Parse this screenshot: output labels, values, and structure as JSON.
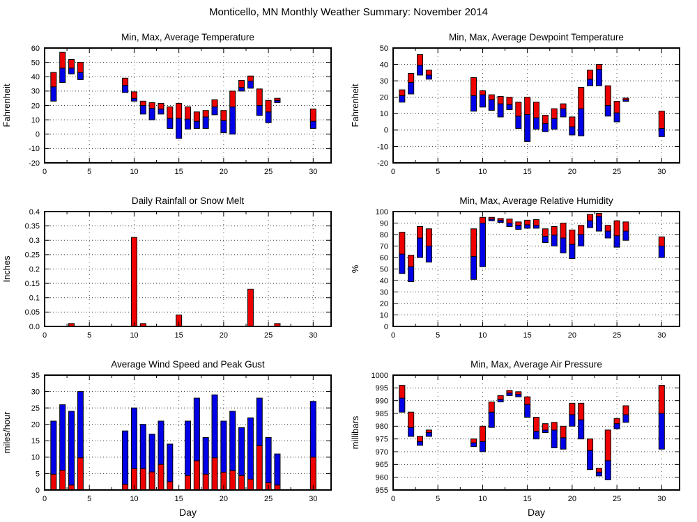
{
  "page_title": "Monticello, MN Monthly Weather Summary: November 2014",
  "colors": {
    "red": "#ee0000",
    "blue": "#0000e8",
    "frame": "#000000",
    "grid": "#333333",
    "vgrid": "#555555",
    "background": "#ffffff"
  },
  "chart_data": [
    {
      "id": "temperature",
      "type": "range-bar",
      "title": "Min, Max, Average Temperature",
      "ylabel": "Fahrenheit",
      "xlabel": "",
      "ylim": [
        -20,
        60
      ],
      "xlim": [
        0,
        32
      ],
      "grid": "dotted",
      "legend_position": "none",
      "ytick_vals": [
        -20,
        -10,
        0,
        10,
        20,
        30,
        40,
        50,
        60
      ],
      "ytick_labels": [
        "-20",
        "-10",
        "0",
        "10",
        "20",
        "30",
        "40",
        "50",
        "60"
      ],
      "xticks": [
        0,
        5,
        10,
        15,
        20,
        25,
        30
      ],
      "xtick_labels": [
        "0",
        "5",
        "10",
        "15",
        "20",
        "25",
        "30"
      ],
      "days": [
        1,
        2,
        3,
        4,
        9,
        10,
        11,
        12,
        13,
        14,
        15,
        16,
        17,
        18,
        19,
        20,
        21,
        22,
        23,
        24,
        25,
        26,
        30
      ],
      "series": [
        {
          "name": "min",
          "values": [
            23,
            36,
            42,
            38,
            29,
            23,
            14,
            10,
            14,
            4,
            -3,
            3.5,
            4,
            4,
            13.5,
            1,
            0,
            30,
            32,
            13,
            8,
            22,
            4
          ]
        },
        {
          "name": "avg",
          "values": [
            33,
            46,
            46,
            43,
            34,
            25,
            20,
            18,
            17.5,
            11,
            11,
            10.5,
            9,
            12,
            19,
            9.5,
            19,
            32.5,
            37,
            20,
            15.5,
            23.5,
            9
          ]
        },
        {
          "name": "max",
          "values": [
            43,
            57,
            52,
            50,
            39,
            29.5,
            23,
            22,
            21.5,
            19,
            21.5,
            19,
            15.5,
            16.5,
            24,
            16.5,
            30,
            37.5,
            40.5,
            31.5,
            23.5,
            25,
            17.5
          ]
        }
      ]
    },
    {
      "id": "dewpoint",
      "type": "range-bar",
      "title": "Min, Max, Average Dewpoint Temperature",
      "ylabel": "Fahrenheit",
      "xlabel": "",
      "ylim": [
        -20,
        50
      ],
      "xlim": [
        0,
        32
      ],
      "grid": "dotted",
      "legend_position": "none",
      "ytick_vals": [
        -20,
        -10,
        0,
        10,
        20,
        30,
        40,
        50
      ],
      "ytick_labels": [
        "-20",
        "-10",
        "0",
        "10",
        "20",
        "30",
        "40",
        "50"
      ],
      "xticks": [
        0,
        5,
        10,
        15,
        20,
        25,
        30
      ],
      "xtick_labels": [
        "0",
        "5",
        "10",
        "15",
        "20",
        "25",
        "30"
      ],
      "days": [
        1,
        2,
        3,
        4,
        9,
        10,
        11,
        12,
        13,
        14,
        15,
        16,
        17,
        18,
        19,
        20,
        21,
        22,
        23,
        24,
        25,
        26,
        30
      ],
      "series": [
        {
          "name": "min",
          "values": [
            17,
            22,
            33.5,
            31,
            11.5,
            14,
            12,
            8,
            12.5,
            1,
            -7,
            0.5,
            -1,
            0.5,
            8,
            -3,
            -3.5,
            27,
            27,
            8.5,
            5,
            17.5,
            -4
          ]
        },
        {
          "name": "avg",
          "values": [
            21,
            29,
            39.5,
            33.5,
            21,
            21.5,
            18.5,
            16,
            15.5,
            8.5,
            9.5,
            7.5,
            4,
            7,
            13,
            2,
            13,
            31,
            37,
            15,
            10.5,
            18.5,
            1
          ]
        },
        {
          "name": "max",
          "values": [
            24.5,
            34.5,
            46,
            36.5,
            32,
            24,
            21.5,
            20.5,
            20,
            17,
            20,
            17,
            9,
            13,
            16,
            8,
            26,
            36.5,
            40,
            27,
            17.5,
            19.5,
            11.5
          ]
        }
      ]
    },
    {
      "id": "rainfall",
      "type": "bar",
      "title": "Daily Rainfall or Snow Melt",
      "ylabel": "Inches",
      "xlabel": "",
      "ylim": [
        0,
        0.4
      ],
      "xlim": [
        0,
        32
      ],
      "grid": "dotted",
      "legend_position": "none",
      "ytick_vals": [
        0,
        0.05,
        0.1,
        0.15,
        0.2,
        0.25,
        0.3,
        0.35,
        0.4
      ],
      "ytick_labels": [
        "0.0",
        "0.05",
        "0.1",
        "0.15",
        "0.2",
        "0.25",
        "0.3",
        "0.35",
        "0.4"
      ],
      "xticks": [
        0,
        5,
        10,
        15,
        20,
        25,
        30
      ],
      "xtick_labels": [
        "0",
        "5",
        "10",
        "15",
        "20",
        "25",
        "30"
      ],
      "days": [
        3,
        10,
        11,
        15,
        23,
        26
      ],
      "values": [
        0.01,
        0.31,
        0.01,
        0.04,
        0.13,
        0.01
      ]
    },
    {
      "id": "humidity",
      "type": "range-bar",
      "title": "Min, Max, Average Relative Humidity",
      "ylabel": "%",
      "xlabel": "",
      "ylim": [
        0,
        100
      ],
      "xlim": [
        0,
        32
      ],
      "grid": "dotted",
      "legend_position": "none",
      "ytick_vals": [
        0,
        10,
        20,
        30,
        40,
        50,
        60,
        70,
        80,
        90,
        100
      ],
      "ytick_labels": [
        "0",
        "10",
        "20",
        "30",
        "40",
        "50",
        "60",
        "70",
        "80",
        "90",
        "100"
      ],
      "xticks": [
        0,
        5,
        10,
        15,
        20,
        25,
        30
      ],
      "xtick_labels": [
        "0",
        "5",
        "10",
        "15",
        "20",
        "25",
        "30"
      ],
      "days": [
        1,
        2,
        3,
        4,
        9,
        10,
        11,
        12,
        13,
        14,
        15,
        16,
        17,
        18,
        19,
        20,
        21,
        22,
        23,
        24,
        25,
        26,
        30
      ],
      "series": [
        {
          "name": "min",
          "values": [
            46,
            39,
            60,
            56,
            41,
            52,
            92,
            90.5,
            87,
            84.5,
            85.5,
            85.5,
            73,
            70,
            64,
            59,
            70,
            86,
            83,
            77,
            69,
            75,
            60
          ]
        },
        {
          "name": "avg",
          "values": [
            63,
            52,
            77,
            70,
            61,
            90,
            93.5,
            92.5,
            90,
            88,
            88.5,
            88,
            78.5,
            79.5,
            77,
            71.5,
            80,
            92,
            96,
            83,
            79,
            83,
            70
          ]
        },
        {
          "name": "max",
          "values": [
            82,
            62,
            87,
            85,
            85,
            95,
            95,
            94,
            93.5,
            91,
            92.5,
            93,
            85,
            87,
            90,
            84,
            88,
            97.5,
            98.5,
            88,
            92,
            91,
            78
          ]
        }
      ]
    },
    {
      "id": "wind",
      "type": "stacked-bar",
      "title": "Average Wind Speed and Peak Gust",
      "ylabel": "miles/hour",
      "xlabel": "Day",
      "ylim": [
        0,
        35
      ],
      "xlim": [
        0,
        32
      ],
      "grid": "dotted",
      "legend_position": "none",
      "ytick_vals": [
        0,
        5,
        10,
        15,
        20,
        25,
        30,
        35
      ],
      "ytick_labels": [
        "0",
        "5",
        "10",
        "15",
        "20",
        "25",
        "30",
        "35"
      ],
      "xticks": [
        0,
        5,
        10,
        15,
        20,
        25,
        30
      ],
      "xtick_labels": [
        "0",
        "5",
        "10",
        "15",
        "20",
        "25",
        "30"
      ],
      "days": [
        1,
        2,
        3,
        4,
        9,
        10,
        11,
        12,
        13,
        14,
        16,
        17,
        18,
        19,
        20,
        21,
        22,
        23,
        24,
        25,
        26,
        30
      ],
      "series": [
        {
          "name": "average_speed",
          "values": [
            4.8,
            6,
            1.5,
            9.8,
            1.7,
            6.5,
            6.5,
            5.5,
            7.8,
            2.5,
            4.4,
            8.9,
            4.8,
            9.8,
            5.4,
            5.9,
            4.4,
            3.3,
            13.5,
            2.2,
            1.5,
            10
          ]
        },
        {
          "name": "peak_gust",
          "values": [
            21,
            26,
            24,
            30,
            18,
            25,
            20,
            17,
            21,
            14,
            21,
            28,
            16,
            29,
            21,
            24,
            19,
            22,
            28,
            16,
            11,
            27
          ]
        }
      ]
    },
    {
      "id": "pressure",
      "type": "range-bar",
      "title": "Min, Max, Average Air Pressure",
      "ylabel": "millibars",
      "xlabel": "Day",
      "ylim": [
        955,
        1000
      ],
      "xlim": [
        0,
        32
      ],
      "grid": "dotted",
      "legend_position": "none",
      "ytick_vals": [
        955,
        960,
        965,
        970,
        975,
        980,
        985,
        990,
        995,
        1000
      ],
      "ytick_labels": [
        "955",
        "960",
        "965",
        "970",
        "975",
        "980",
        "985",
        "990",
        "995",
        "1000"
      ],
      "xticks": [
        0,
        5,
        10,
        15,
        20,
        25,
        30
      ],
      "xtick_labels": [
        "0",
        "5",
        "10",
        "15",
        "20",
        "25",
        "30"
      ],
      "days": [
        1,
        2,
        3,
        4,
        9,
        10,
        11,
        12,
        13,
        14,
        15,
        16,
        17,
        18,
        19,
        20,
        21,
        22,
        23,
        24,
        25,
        26,
        30
      ],
      "series": [
        {
          "name": "min",
          "values": [
            985.5,
            976,
            972.5,
            976,
            972,
            970,
            979.5,
            989.5,
            992,
            991.5,
            983.5,
            975,
            977.5,
            971.5,
            971,
            980,
            975,
            963,
            960.5,
            959,
            979,
            981.5,
            971
          ]
        },
        {
          "name": "avg",
          "values": [
            991,
            979.5,
            974,
            977.5,
            973.5,
            974,
            985.5,
            990.5,
            993,
            992.5,
            988.5,
            978,
            978.5,
            978.5,
            975.5,
            984.5,
            982.5,
            970.5,
            962,
            966.5,
            981,
            984.5,
            985
          ]
        },
        {
          "name": "max",
          "values": [
            996,
            985.5,
            976,
            978.5,
            975,
            980,
            989.5,
            992,
            994,
            993.5,
            991.5,
            983.5,
            981,
            981.5,
            980,
            989,
            989,
            975,
            963.5,
            978.5,
            983,
            988,
            996
          ]
        }
      ]
    }
  ]
}
